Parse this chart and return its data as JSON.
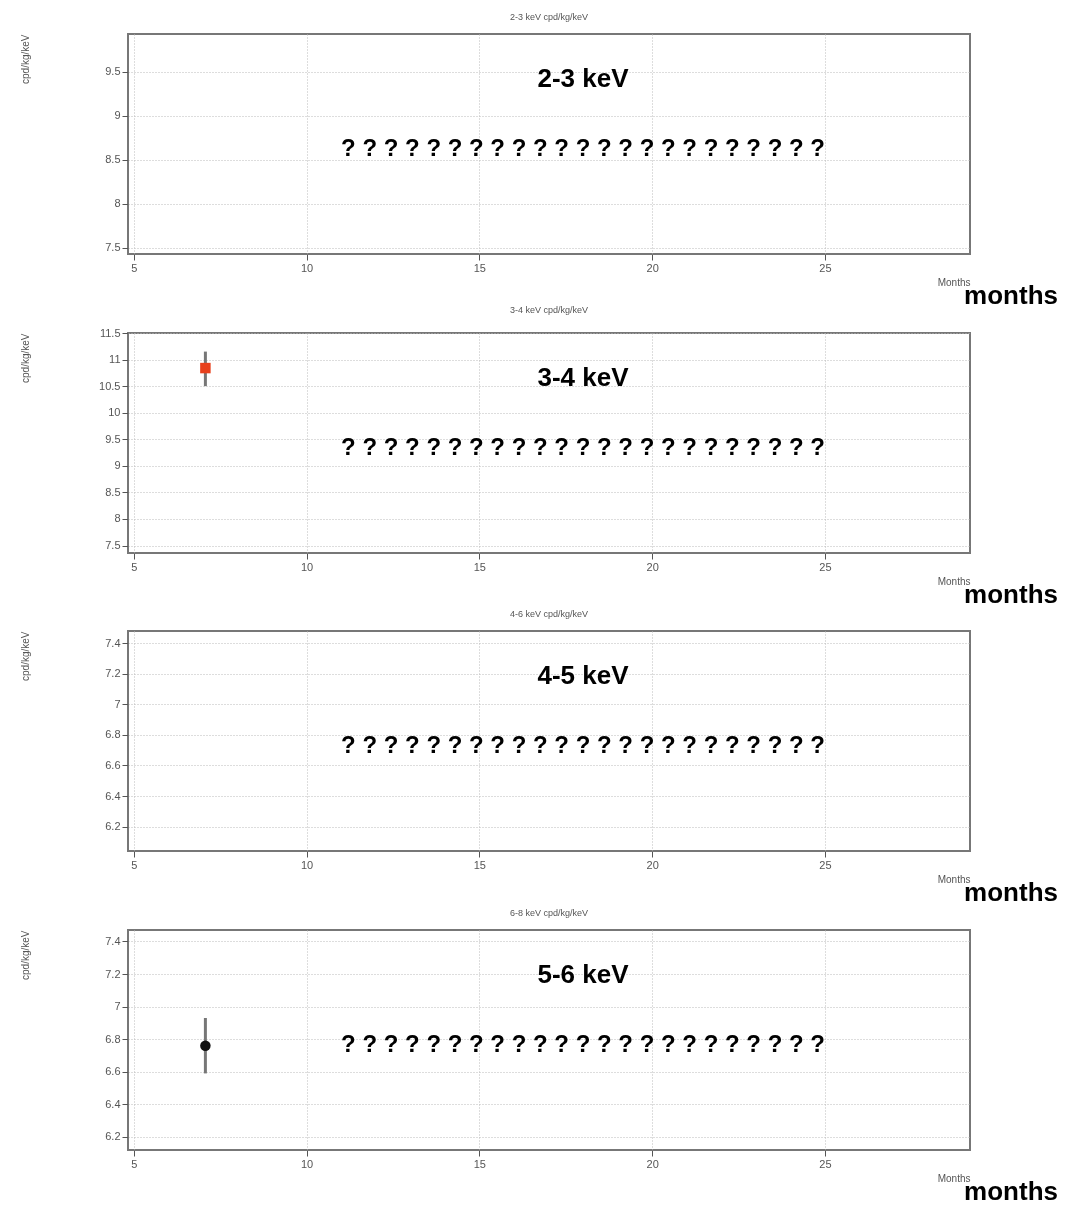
{
  "chart_data": [
    {
      "type": "scatter",
      "title": "2-3 keV cpd/kg/keV",
      "xlabel": "Months",
      "ylabel": "cpd/kg/keV",
      "xlim": [
        4.83,
        29.2
      ],
      "xticks": [
        5,
        10,
        15,
        20,
        25
      ],
      "ylim": [
        7.43,
        9.93
      ],
      "yticks": [
        7.5,
        8,
        8.5,
        9,
        9.5
      ],
      "grid": true,
      "annotations": [
        "2-3 keV",
        "? ? ? ? ? ? ? ? ? ? ? ? ? ? ? ? ? ? ? ? ? ? ?",
        "months"
      ]
    },
    {
      "type": "scatter",
      "title": "3-4 keV cpd/kg/keV",
      "xlabel": "Months",
      "ylabel": "cpd/kg/keV",
      "xlim": [
        4.83,
        29.2
      ],
      "xticks": [
        5,
        10,
        15,
        20,
        25
      ],
      "ylim": [
        7.36,
        11.5
      ],
      "yticks": [
        7.5,
        8,
        8.5,
        9,
        9.5,
        10,
        10.5,
        11,
        11.5
      ],
      "grid": true,
      "marker": "square",
      "x": [
        7.07
      ],
      "series": [
        {
          "color": "#e8401c",
          "values": [
            10.84
          ],
          "errors": [
            [
              10.5,
              11.15
            ]
          ]
        }
      ],
      "annotations": [
        "3-4 keV",
        "? ? ? ? ? ? ? ? ? ? ? ? ? ? ? ? ? ? ? ? ? ? ?",
        "months"
      ]
    },
    {
      "type": "scatter",
      "title": "4-6 keV cpd/kg/keV",
      "xlabel": "Months",
      "ylabel": "cpd/kg/keV",
      "xlim": [
        4.83,
        29.2
      ],
      "xticks": [
        5,
        10,
        15,
        20,
        25
      ],
      "ylim": [
        6.04,
        7.48
      ],
      "yticks": [
        6.2,
        6.4,
        6.6,
        6.8,
        7,
        7.2,
        7.4
      ],
      "grid": true,
      "annotations": [
        "4-5 keV",
        "? ? ? ? ? ? ? ? ? ? ? ? ? ? ? ? ? ? ? ? ? ? ?",
        "months"
      ]
    },
    {
      "type": "scatter",
      "title": "6-8 keV cpd/kg/keV",
      "xlabel": "Months",
      "ylabel": "cpd/kg/keV",
      "xlim": [
        4.83,
        29.2
      ],
      "xticks": [
        5,
        10,
        15,
        20,
        25
      ],
      "ylim": [
        6.12,
        7.47
      ],
      "yticks": [
        6.2,
        6.4,
        6.6,
        6.8,
        7,
        7.2,
        7.4
      ],
      "grid": true,
      "marker": "circle",
      "x": [
        7.07
      ],
      "series": [
        {
          "color": "#111111",
          "values": [
            6.76
          ],
          "errors": [
            [
              6.59,
              6.93
            ]
          ]
        }
      ],
      "annotations": [
        "5-6 keV",
        "? ? ? ? ? ? ? ? ? ? ? ? ? ? ? ? ? ? ? ? ? ? ?",
        "months"
      ]
    }
  ]
}
